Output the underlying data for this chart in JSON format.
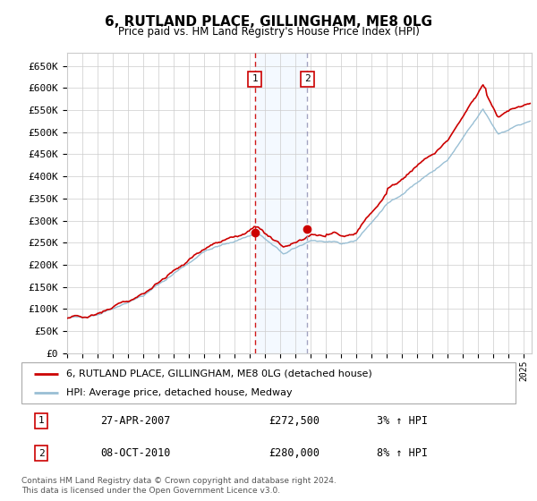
{
  "title": "6, RUTLAND PLACE, GILLINGHAM, ME8 0LG",
  "subtitle": "Price paid vs. HM Land Registry's House Price Index (HPI)",
  "ylim": [
    0,
    680000
  ],
  "yticks": [
    0,
    50000,
    100000,
    150000,
    200000,
    250000,
    300000,
    350000,
    400000,
    450000,
    500000,
    550000,
    600000,
    650000
  ],
  "ytick_labels": [
    "£0",
    "£50K",
    "£100K",
    "£150K",
    "£200K",
    "£250K",
    "£300K",
    "£350K",
    "£400K",
    "£450K",
    "£500K",
    "£550K",
    "£600K",
    "£650K"
  ],
  "line_color_red": "#cc0000",
  "line_color_blue": "#99bfd4",
  "transaction1_x": 2007.32,
  "transaction1_y": 272500,
  "transaction2_x": 2010.77,
  "transaction2_y": 280000,
  "legend_label_red": "6, RUTLAND PLACE, GILLINGHAM, ME8 0LG (detached house)",
  "legend_label_blue": "HPI: Average price, detached house, Medway",
  "ann1_num": "1",
  "ann1_date": "27-APR-2007",
  "ann1_price": "£272,500",
  "ann1_hpi": "3% ↑ HPI",
  "ann2_num": "2",
  "ann2_date": "08-OCT-2010",
  "ann2_price": "£280,000",
  "ann2_hpi": "8% ↑ HPI",
  "footer": "Contains HM Land Registry data © Crown copyright and database right 2024.\nThis data is licensed under the Open Government Licence v3.0.",
  "background_color": "#ffffff",
  "grid_color": "#cccccc",
  "shade_color": "#ddeeff",
  "xlim_start": 1995,
  "xlim_end": 2025.5
}
